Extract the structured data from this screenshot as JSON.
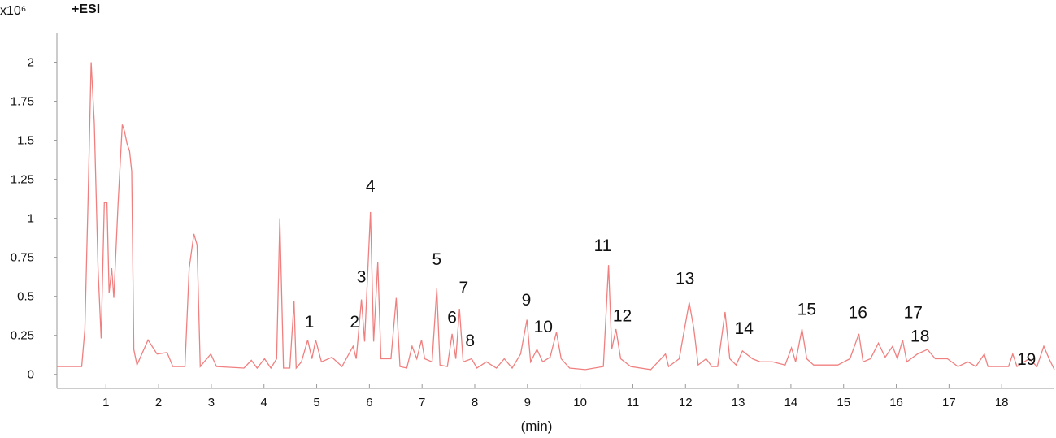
{
  "chart_data": {
    "type": "line",
    "y_scale_label": "x10⁶",
    "ion_mode_label": "+ESI",
    "x_label": "(min)",
    "color": "#f08080",
    "xlim": [
      0.07,
      19.0
    ],
    "ylim": [
      -0.09,
      2.19
    ],
    "xticks": [
      1,
      2,
      3,
      4,
      5,
      6,
      7,
      8,
      9,
      10,
      11,
      12,
      13,
      14,
      15,
      16,
      17,
      18
    ],
    "yticks": [
      0,
      0.25,
      0.5,
      0.75,
      1,
      1.25,
      1.5,
      1.75,
      2
    ],
    "x": [
      0.07,
      0.54,
      0.6,
      0.66,
      0.72,
      0.78,
      0.85,
      0.91,
      0.97,
      1.02,
      1.06,
      1.11,
      1.15,
      1.23,
      1.31,
      1.35,
      1.4,
      1.45,
      1.49,
      1.53,
      1.59,
      1.8,
      1.97,
      2.16,
      2.27,
      2.5,
      2.58,
      2.67,
      2.73,
      2.79,
      2.99,
      3.1,
      3.62,
      3.76,
      3.87,
      4.01,
      4.13,
      4.24,
      4.3,
      4.37,
      4.49,
      4.57,
      4.61,
      4.71,
      4.83,
      4.91,
      4.98,
      5.09,
      5.29,
      5.48,
      5.69,
      5.75,
      5.85,
      5.91,
      6.02,
      6.08,
      6.16,
      6.22,
      6.41,
      6.51,
      6.58,
      6.71,
      6.81,
      6.9,
      6.99,
      7.05,
      7.19,
      7.28,
      7.34,
      7.48,
      7.57,
      7.64,
      7.71,
      7.78,
      7.94,
      8.04,
      8.22,
      8.41,
      8.56,
      8.71,
      8.87,
      8.99,
      9.06,
      9.18,
      9.29,
      9.43,
      9.55,
      9.64,
      9.8,
      10.1,
      10.44,
      10.54,
      10.6,
      10.68,
      10.77,
      10.96,
      11.34,
      11.62,
      11.68,
      11.88,
      12.07,
      12.16,
      12.24,
      12.39,
      12.5,
      12.61,
      12.75,
      12.84,
      12.96,
      13.08,
      13.27,
      13.42,
      13.65,
      13.89,
      14.01,
      14.09,
      14.21,
      14.3,
      14.43,
      14.89,
      15.12,
      15.29,
      15.37,
      15.51,
      15.66,
      15.79,
      15.93,
      16.02,
      16.12,
      16.2,
      16.4,
      16.59,
      16.74,
      16.97,
      17.17,
      17.36,
      17.51,
      17.67,
      17.74,
      18.13,
      18.21,
      18.29,
      18.52,
      18.67,
      18.8,
      18.9,
      19.0
    ],
    "values": [
      0.05,
      0.05,
      0.29,
      1.09,
      2.0,
      1.61,
      0.68,
      0.23,
      1.1,
      1.1,
      0.52,
      0.68,
      0.49,
      1.09,
      1.6,
      1.56,
      1.48,
      1.43,
      1.3,
      0.16,
      0.06,
      0.22,
      0.13,
      0.14,
      0.05,
      0.05,
      0.68,
      0.9,
      0.83,
      0.05,
      0.13,
      0.05,
      0.04,
      0.09,
      0.04,
      0.1,
      0.04,
      0.1,
      1.0,
      0.04,
      0.04,
      0.47,
      0.04,
      0.08,
      0.22,
      0.1,
      0.22,
      0.08,
      0.11,
      0.05,
      0.18,
      0.1,
      0.48,
      0.21,
      1.04,
      0.21,
      0.72,
      0.1,
      0.1,
      0.49,
      0.05,
      0.04,
      0.18,
      0.1,
      0.22,
      0.1,
      0.08,
      0.55,
      0.06,
      0.05,
      0.26,
      0.1,
      0.42,
      0.08,
      0.1,
      0.04,
      0.08,
      0.04,
      0.1,
      0.04,
      0.13,
      0.35,
      0.08,
      0.16,
      0.08,
      0.11,
      0.27,
      0.1,
      0.04,
      0.03,
      0.05,
      0.7,
      0.16,
      0.29,
      0.1,
      0.05,
      0.03,
      0.13,
      0.05,
      0.1,
      0.46,
      0.29,
      0.06,
      0.1,
      0.05,
      0.05,
      0.4,
      0.1,
      0.06,
      0.15,
      0.1,
      0.08,
      0.08,
      0.06,
      0.17,
      0.08,
      0.29,
      0.1,
      0.06,
      0.06,
      0.1,
      0.26,
      0.08,
      0.1,
      0.2,
      0.11,
      0.18,
      0.1,
      0.22,
      0.08,
      0.13,
      0.16,
      0.1,
      0.1,
      0.05,
      0.08,
      0.05,
      0.13,
      0.05,
      0.05,
      0.13,
      0.05,
      0.1,
      0.05,
      0.18,
      0.1,
      0.03
    ],
    "annotations": [
      {
        "text": "1",
        "x": 4.86,
        "y": 0.3
      },
      {
        "text": "2",
        "x": 5.72,
        "y": 0.3
      },
      {
        "text": "3",
        "x": 5.85,
        "y": 0.59
      },
      {
        "text": "4",
        "x": 6.02,
        "y": 1.17
      },
      {
        "text": "5",
        "x": 7.28,
        "y": 0.7
      },
      {
        "text": "6",
        "x": 7.57,
        "y": 0.33
      },
      {
        "text": "7",
        "x": 7.79,
        "y": 0.52
      },
      {
        "text": "8",
        "x": 7.91,
        "y": 0.18
      },
      {
        "text": "9",
        "x": 8.98,
        "y": 0.44
      },
      {
        "text": "10",
        "x": 9.3,
        "y": 0.27
      },
      {
        "text": "11",
        "x": 10.43,
        "y": 0.79
      },
      {
        "text": "12",
        "x": 10.8,
        "y": 0.34
      },
      {
        "text": "13",
        "x": 11.99,
        "y": 0.58
      },
      {
        "text": "14",
        "x": 13.11,
        "y": 0.26
      },
      {
        "text": "15",
        "x": 14.3,
        "y": 0.38
      },
      {
        "text": "16",
        "x": 15.27,
        "y": 0.36
      },
      {
        "text": "17",
        "x": 16.32,
        "y": 0.36
      },
      {
        "text": "18",
        "x": 16.45,
        "y": 0.21
      },
      {
        "text": "19",
        "x": 18.47,
        "y": 0.06
      }
    ]
  }
}
